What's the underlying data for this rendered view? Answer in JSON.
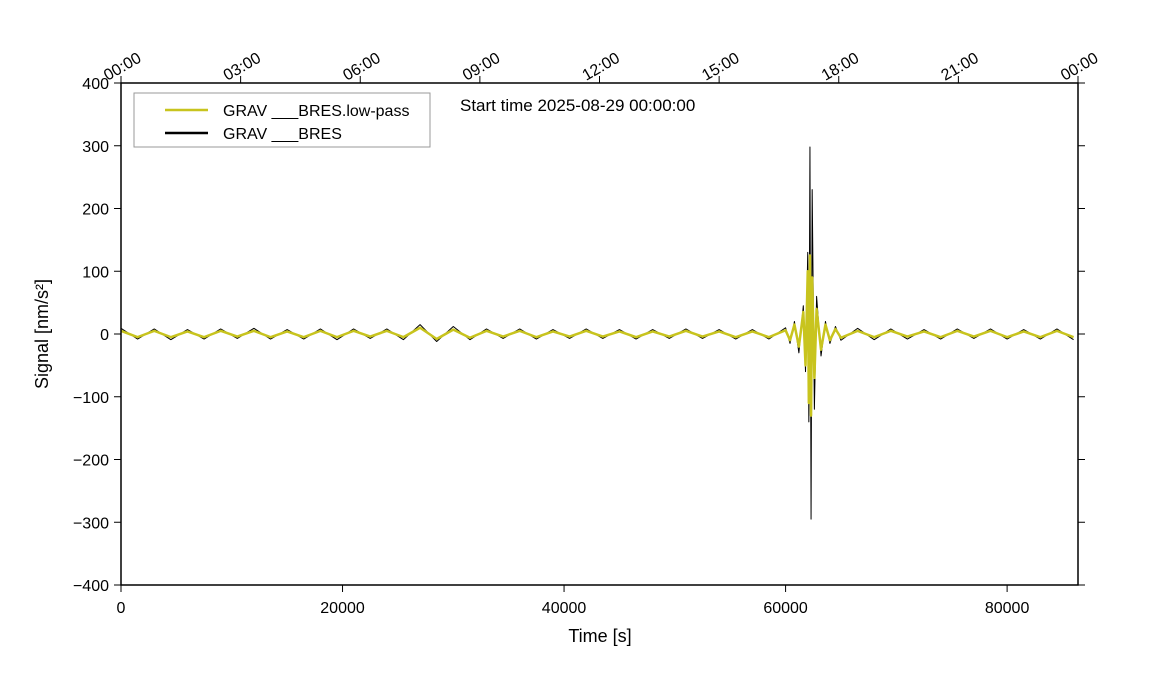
{
  "chart_data": {
    "type": "line",
    "annotation": "Start time 2025-08-29 00:00:00",
    "xlabel": "Time [s]",
    "ylabel": "Signal [nm/s²]",
    "xlim": [
      0,
      86400
    ],
    "ylim": [
      -400,
      400
    ],
    "xticks": [
      0,
      20000,
      40000,
      60000,
      80000
    ],
    "yticks": [
      {
        "value": -400,
        "label": "−400"
      },
      {
        "value": -300,
        "label": "−300"
      },
      {
        "value": -200,
        "label": "−200"
      },
      {
        "value": -100,
        "label": "−100"
      },
      0,
      100,
      200,
      300,
      400
    ],
    "top_xticks": [
      {
        "value": 0,
        "label": "00:00"
      },
      {
        "value": 10800,
        "label": "03:00"
      },
      {
        "value": 21600,
        "label": "06:00"
      },
      {
        "value": 32400,
        "label": "09:00"
      },
      {
        "value": 43200,
        "label": "12:00"
      },
      {
        "value": 54000,
        "label": "15:00"
      },
      {
        "value": 64800,
        "label": "18:00"
      },
      {
        "value": 75600,
        "label": "21:00"
      },
      {
        "value": 86400,
        "label": "00:00"
      }
    ],
    "legend": "upper left",
    "x": [
      0,
      1500,
      3000,
      4500,
      6000,
      7500,
      9000,
      10500,
      12000,
      13500,
      15000,
      16500,
      18000,
      19500,
      21000,
      22500,
      24000,
      25500,
      27000,
      28500,
      30000,
      31500,
      33000,
      34500,
      36000,
      37500,
      39000,
      40500,
      42000,
      43500,
      45000,
      46500,
      48000,
      49500,
      51000,
      52500,
      54000,
      55500,
      57000,
      58500,
      60000,
      60400,
      60800,
      61200,
      61600,
      61800,
      62000,
      62100,
      62200,
      62300,
      62400,
      62600,
      62800,
      63200,
      63600,
      64000,
      64500,
      65000,
      66500,
      68000,
      69500,
      71000,
      72500,
      74000,
      75500,
      77000,
      78500,
      80000,
      81500,
      83000,
      84500,
      86000
    ],
    "series": [
      {
        "name": "GRAV ___BRES.low-pass",
        "color": "#c8c41e",
        "values": [
          5,
          -5,
          5,
          -5,
          4,
          -5,
          5,
          -4,
          5,
          -5,
          4,
          -5,
          5,
          -5,
          5,
          -4,
          5,
          -5,
          10,
          -8,
          7,
          -6,
          5,
          -4,
          5,
          -5,
          4,
          -4,
          5,
          -4,
          4,
          -5,
          4,
          -4,
          5,
          -4,
          4,
          -5,
          4,
          -5,
          6,
          -10,
          15,
          -20,
          35,
          -50,
          100,
          -110,
          125,
          -130,
          90,
          -70,
          40,
          -25,
          15,
          -10,
          8,
          -6,
          5,
          -5,
          5,
          -4,
          4,
          -5,
          5,
          -4,
          5,
          -5,
          4,
          -5,
          5,
          -5
        ]
      },
      {
        "name": "GRAV ___BRES",
        "color": "#000000",
        "values": [
          9,
          -8,
          8,
          -9,
          7,
          -8,
          8,
          -7,
          9,
          -8,
          7,
          -8,
          8,
          -9,
          8,
          -7,
          8,
          -9,
          15,
          -12,
          12,
          -9,
          8,
          -7,
          8,
          -8,
          7,
          -7,
          8,
          -7,
          7,
          -8,
          7,
          -7,
          8,
          -7,
          7,
          -8,
          7,
          -8,
          10,
          -15,
          20,
          -30,
          45,
          -60,
          130,
          -140,
          298,
          -295,
          230,
          -120,
          60,
          -35,
          20,
          -15,
          12,
          -10,
          9,
          -9,
          8,
          -8,
          7,
          -8,
          8,
          -7,
          8,
          -8,
          7,
          -8,
          8,
          -9
        ]
      }
    ]
  }
}
